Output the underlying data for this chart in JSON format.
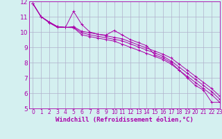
{
  "background_color": "#d4f0f0",
  "grid_color": "#b0b0cc",
  "line_color": "#aa00aa",
  "xlim": [
    -0.5,
    23
  ],
  "ylim": [
    5,
    12
  ],
  "xlabel": "Windchill (Refroidissement éolien,°C)",
  "xlabel_fontsize": 6.5,
  "ytick_fontsize": 6.5,
  "xtick_fontsize": 5.5,
  "xticks": [
    0,
    1,
    2,
    3,
    4,
    5,
    6,
    7,
    8,
    9,
    10,
    11,
    12,
    13,
    14,
    15,
    16,
    17,
    18,
    19,
    20,
    21,
    22,
    23
  ],
  "yticks": [
    5,
    6,
    7,
    8,
    9,
    10,
    11,
    12
  ],
  "series": [
    [
      11.85,
      11.0,
      10.6,
      10.3,
      10.3,
      11.35,
      10.5,
      10.0,
      9.85,
      9.8,
      10.1,
      9.8,
      9.5,
      9.3,
      9.1,
      8.5,
      8.3,
      8.0,
      7.5,
      7.0,
      6.5,
      6.2,
      5.4,
      5.4
    ],
    [
      11.85,
      11.0,
      10.65,
      10.35,
      10.3,
      10.35,
      10.05,
      9.95,
      9.85,
      9.75,
      9.65,
      9.55,
      9.35,
      9.15,
      8.95,
      8.75,
      8.55,
      8.3,
      7.9,
      7.5,
      7.1,
      6.7,
      6.3,
      5.8
    ],
    [
      11.85,
      11.0,
      10.65,
      10.35,
      10.3,
      10.3,
      9.95,
      9.82,
      9.72,
      9.62,
      9.52,
      9.42,
      9.22,
      9.02,
      8.82,
      8.62,
      8.42,
      8.1,
      7.7,
      7.3,
      6.9,
      6.5,
      6.1,
      5.6
    ],
    [
      11.85,
      11.0,
      10.65,
      10.35,
      10.3,
      10.28,
      9.82,
      9.7,
      9.6,
      9.5,
      9.4,
      9.2,
      9.0,
      8.8,
      8.6,
      8.4,
      8.2,
      7.9,
      7.5,
      7.1,
      6.7,
      6.3,
      5.9,
      5.4
    ]
  ]
}
